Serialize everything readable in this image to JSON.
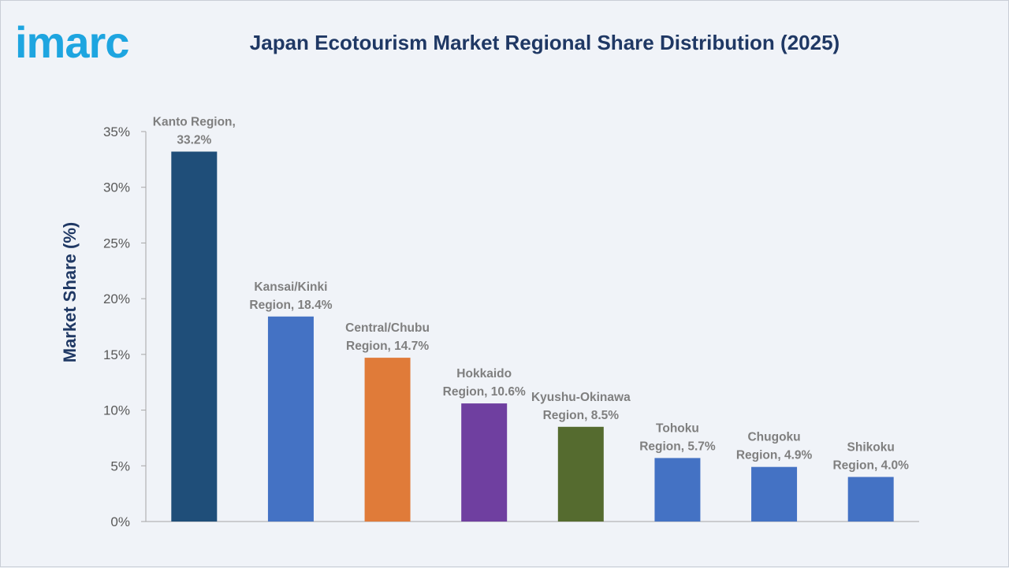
{
  "brand": {
    "logo_text": "imarc",
    "logo_color": "#1ea5e0"
  },
  "chart_data": {
    "type": "bar",
    "title": "Japan Ecotourism Market Regional Share Distribution (2025)",
    "ylabel": "Market Share (%)",
    "xlabel": "",
    "ylim": [
      0,
      35
    ],
    "yticks": [
      0,
      5,
      10,
      15,
      20,
      25,
      30,
      35
    ],
    "ytick_labels": [
      "0%",
      "5%",
      "10%",
      "15%",
      "20%",
      "25%",
      "30%",
      "35%"
    ],
    "grid": false,
    "categories": [
      "Kanto Region",
      "Kansai/Kinki Region",
      "Central/Chubu Region",
      "Hokkaido Region",
      "Kyushu-Okinawa Region",
      "Tohoku Region",
      "Chugoku Region",
      "Shikoku Region"
    ],
    "values": [
      33.2,
      18.4,
      14.7,
      10.6,
      8.5,
      5.7,
      4.9,
      4.0
    ],
    "data_labels": [
      [
        "Kanto Region,",
        "33.2%"
      ],
      [
        "Kansai/Kinki",
        "Region, 18.4%"
      ],
      [
        "Central/Chubu",
        "Region, 14.7%"
      ],
      [
        "Hokkaido",
        "Region, 10.6%"
      ],
      [
        "Kyushu-Okinawa",
        "Region, 8.5%"
      ],
      [
        "Tohoku",
        "Region, 5.7%"
      ],
      [
        "Chugoku",
        "Region, 4.9%"
      ],
      [
        "Shikoku",
        "Region, 4.0%"
      ]
    ],
    "colors": [
      "#1f4e79",
      "#4472c4",
      "#e07b39",
      "#6f3fa0",
      "#556b2f",
      "#4472c4",
      "#4472c4",
      "#4472c4"
    ]
  }
}
